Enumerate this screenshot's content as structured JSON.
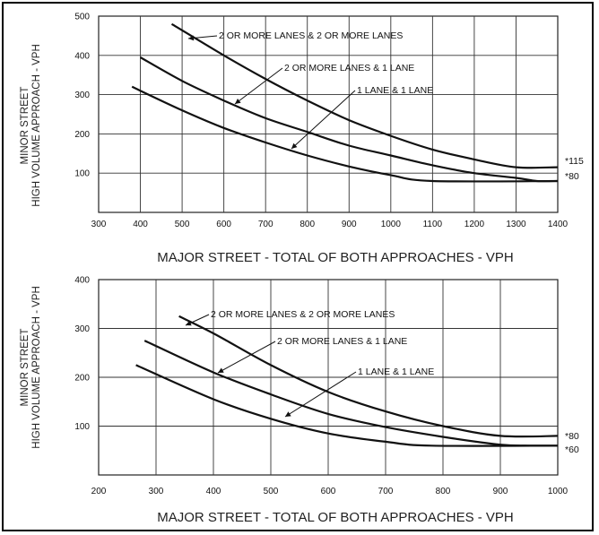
{
  "chart_data": [
    {
      "type": "line",
      "xlabel": "MAJOR STREET - TOTAL OF BOTH APPROACHES - VPH",
      "ylabel_line1": "MINOR STREET",
      "ylabel_line2": "HIGH VOLUME APPROACH - VPH",
      "xlim": [
        300,
        1400
      ],
      "ylim": [
        0,
        500
      ],
      "xticks": [
        300,
        400,
        500,
        600,
        700,
        800,
        900,
        1000,
        1100,
        1200,
        1300,
        1400
      ],
      "yticks": [
        100,
        200,
        300,
        400,
        500
      ],
      "grid": true,
      "series": [
        {
          "name": "2 OR MORE LANES & 2 OR MORE LANES",
          "x": [
            475,
            600,
            700,
            800,
            900,
            1000,
            1100,
            1200,
            1300,
            1400
          ],
          "y": [
            480,
            400,
            340,
            285,
            235,
            195,
            160,
            135,
            115,
            115
          ]
        },
        {
          "name": "2 OR MORE LANES & 1 LANE",
          "x": [
            400,
            500,
            600,
            700,
            800,
            900,
            1000,
            1100,
            1200,
            1300,
            1350,
            1400
          ],
          "y": [
            395,
            335,
            285,
            240,
            205,
            170,
            145,
            120,
            100,
            88,
            80,
            80
          ]
        },
        {
          "name": "1 LANE & 1 LANE",
          "x": [
            380,
            500,
            600,
            700,
            800,
            900,
            1000,
            1100,
            1400
          ],
          "y": [
            320,
            260,
            215,
            178,
            145,
            117,
            95,
            80,
            80
          ]
        }
      ],
      "end_labels": [
        "*115",
        "*80"
      ]
    },
    {
      "type": "line",
      "xlabel": "MAJOR STREET - TOTAL OF BOTH APPROACHES - VPH",
      "ylabel_line1": "MINOR STREET",
      "ylabel_line2": "HIGH VOLUME APPROACH - VPH",
      "xlim": [
        200,
        1000
      ],
      "ylim": [
        0,
        400
      ],
      "xticks": [
        200,
        300,
        400,
        500,
        600,
        700,
        800,
        900,
        1000
      ],
      "yticks": [
        100,
        200,
        300,
        400
      ],
      "grid": true,
      "series": [
        {
          "name": "2 OR MORE LANES & 2 OR MORE LANES",
          "x": [
            340,
            400,
            500,
            600,
            700,
            800,
            900,
            1000
          ],
          "y": [
            325,
            290,
            225,
            170,
            130,
            100,
            80,
            80
          ]
        },
        {
          "name": "2 OR MORE LANES & 1 LANE",
          "x": [
            280,
            400,
            500,
            600,
            700,
            800,
            900,
            950,
            1000
          ],
          "y": [
            275,
            210,
            165,
            125,
            98,
            78,
            62,
            60,
            60
          ]
        },
        {
          "name": "1 LANE & 1 LANE",
          "x": [
            265,
            400,
            500,
            600,
            700,
            780,
            1000
          ],
          "y": [
            225,
            155,
            115,
            85,
            68,
            60,
            60
          ]
        }
      ],
      "end_labels": [
        "*80",
        "*60"
      ]
    }
  ]
}
